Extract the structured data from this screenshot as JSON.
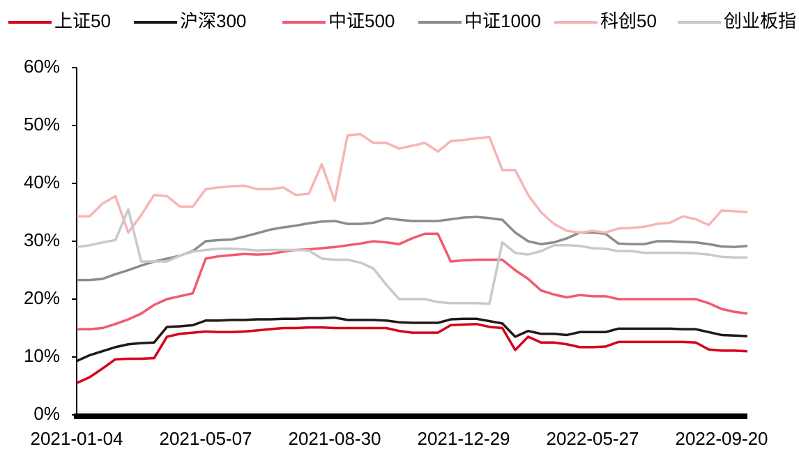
{
  "chart_data": {
    "type": "line",
    "categories": [
      "2021-01-04",
      null,
      null,
      null,
      null,
      null,
      null,
      null,
      null,
      null,
      "2021-05-07",
      null,
      null,
      null,
      null,
      null,
      null,
      null,
      null,
      null,
      "2021-08-30",
      null,
      null,
      null,
      null,
      null,
      null,
      null,
      null,
      null,
      "2021-12-29",
      null,
      null,
      null,
      null,
      null,
      null,
      null,
      null,
      null,
      "2022-05-27",
      null,
      null,
      null,
      null,
      null,
      null,
      null,
      null,
      null,
      "2022-09-20",
      null,
      null
    ],
    "ylim": [
      0,
      60
    ],
    "yticks": [
      {
        "value": 0,
        "label": "0%"
      },
      {
        "value": 10,
        "label": "10%"
      },
      {
        "value": 20,
        "label": "20%"
      },
      {
        "value": 30,
        "label": "30%"
      },
      {
        "value": 40,
        "label": "40%"
      },
      {
        "value": 50,
        "label": "50%"
      },
      {
        "value": 60,
        "label": "60%"
      }
    ],
    "series": [
      {
        "name": "上证50",
        "color": "#d7001e",
        "values": [
          5.5,
          6.5,
          8,
          9.6,
          9.7,
          9.7,
          9.8,
          13.5,
          14,
          14.2,
          14.4,
          14.3,
          14.3,
          14.4,
          14.6,
          14.8,
          15,
          15,
          15.1,
          15.1,
          15,
          15,
          15,
          15,
          15,
          14.5,
          14.2,
          14.2,
          14.2,
          15.5,
          15.6,
          15.7,
          15.2,
          15,
          11.2,
          13.5,
          12.5,
          12.5,
          12.2,
          11.7,
          11.7,
          11.8,
          12.6,
          12.6,
          12.6,
          12.6,
          12.6,
          12.6,
          12.5,
          11.3,
          11.1,
          11.1,
          11
        ]
      },
      {
        "name": "沪深300",
        "color": "#231815",
        "values": [
          9.3,
          10.3,
          11,
          11.7,
          12.2,
          12.4,
          12.5,
          15.2,
          15.3,
          15.5,
          16.3,
          16.3,
          16.4,
          16.4,
          16.5,
          16.5,
          16.6,
          16.6,
          16.7,
          16.7,
          16.8,
          16.4,
          16.4,
          16.4,
          16.3,
          16,
          15.9,
          15.9,
          15.9,
          16.5,
          16.6,
          16.6,
          16.2,
          15.8,
          13.5,
          14.5,
          14,
          14,
          13.8,
          14.3,
          14.3,
          14.3,
          14.9,
          14.9,
          14.9,
          14.9,
          14.9,
          14.8,
          14.8,
          14.3,
          13.8,
          13.7,
          13.6
        ]
      },
      {
        "name": "中证500",
        "color": "#f25a6e",
        "values": [
          14.8,
          14.8,
          15,
          15.7,
          16.5,
          17.5,
          19,
          20,
          20.5,
          21,
          27,
          27.4,
          27.6,
          27.8,
          27.7,
          27.8,
          28.2,
          28.5,
          28.6,
          28.8,
          29,
          29.3,
          29.6,
          30,
          29.8,
          29.5,
          30.5,
          31.3,
          31.3,
          26.5,
          26.7,
          26.8,
          26.8,
          26.8,
          25,
          23.5,
          21.5,
          20.8,
          20.3,
          20.7,
          20.5,
          20.5,
          20,
          20,
          20,
          20,
          20,
          20,
          20,
          19.3,
          18.3,
          17.8,
          17.5
        ]
      },
      {
        "name": "中证1000",
        "color": "#8c8c8c",
        "values": [
          23.3,
          23.3,
          23.5,
          24.3,
          25,
          25.8,
          26.5,
          27,
          27.5,
          28.3,
          30,
          30.2,
          30.3,
          30.8,
          31.4,
          32,
          32.4,
          32.7,
          33.1,
          33.4,
          33.5,
          33,
          33,
          33.2,
          34,
          33.7,
          33.5,
          33.5,
          33.5,
          33.8,
          34.1,
          34.2,
          34,
          33.7,
          31.5,
          30,
          29.5,
          29.8,
          30.5,
          31.5,
          31.5,
          31.3,
          29.6,
          29.5,
          29.5,
          30,
          30,
          29.9,
          29.8,
          29.5,
          29.1,
          29,
          29.2
        ]
      },
      {
        "name": "科创50",
        "color": "#f8b4b4",
        "values": [
          34.3,
          34.3,
          36.5,
          37.8,
          31.5,
          34.5,
          38,
          37.8,
          36,
          36,
          39,
          39.3,
          39.5,
          39.6,
          39,
          39,
          39.3,
          38,
          38.2,
          43.3,
          37,
          48.3,
          48.5,
          47,
          47,
          46,
          46.5,
          47,
          45.5,
          47.3,
          47.5,
          47.8,
          48,
          42.3,
          42.3,
          38,
          35,
          33,
          31.8,
          31.5,
          31.8,
          31.5,
          32.2,
          32.3,
          32.5,
          33,
          33.2,
          34.3,
          33.8,
          32.8,
          35.3,
          35.2,
          35
        ]
      },
      {
        "name": "创业板指",
        "color": "#c9c9c9",
        "values": [
          29,
          29.3,
          29.8,
          30.2,
          35.5,
          26.5,
          26.5,
          26.5,
          27.5,
          28.2,
          28.5,
          28.7,
          28.7,
          28.6,
          28.4,
          28.5,
          28.5,
          28.5,
          28.4,
          27,
          26.8,
          26.8,
          26.3,
          25.3,
          22.5,
          20,
          20,
          20,
          19.5,
          19.3,
          19.3,
          19.3,
          19.2,
          29.8,
          28,
          27.7,
          28.3,
          29.3,
          29.3,
          29.2,
          28.8,
          28.7,
          28.3,
          28.3,
          28,
          28,
          28,
          28,
          27.9,
          27.7,
          27.3,
          27.2,
          27.2
        ]
      }
    ]
  }
}
